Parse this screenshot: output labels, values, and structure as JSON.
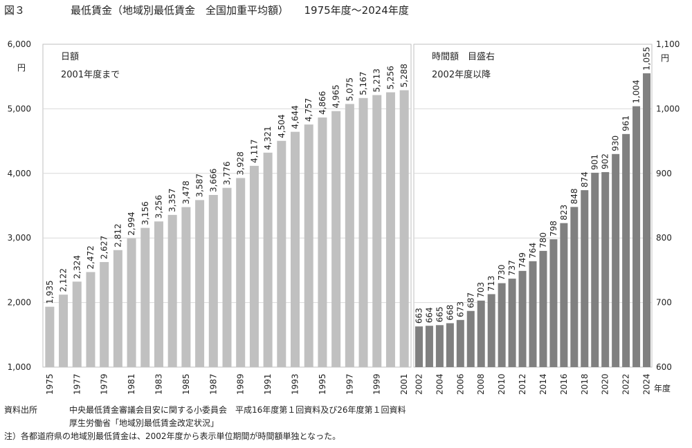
{
  "figure": {
    "number": "図３",
    "title": "最低賃金（地域別最低賃金　全国加重平均額）　　1975年度～2024年度"
  },
  "chart_data": [
    {
      "type": "bar",
      "panel_label": "日額",
      "panel_sublabel": "2001年度まで",
      "unit_label": "円",
      "ylim": [
        1000,
        6000
      ],
      "yticks": [
        "1,000",
        "2,000",
        "3,000",
        "4,000",
        "5,000",
        "6,000"
      ],
      "x_tick_labels": [
        "1975",
        "1977",
        "1979",
        "1981",
        "1983",
        "1985",
        "1987",
        "1989",
        "1991",
        "1993",
        "1995",
        "1997",
        "1999",
        "2001"
      ],
      "x": [
        1975,
        1976,
        1977,
        1978,
        1979,
        1980,
        1981,
        1982,
        1983,
        1984,
        1985,
        1986,
        1987,
        1988,
        1989,
        1990,
        1991,
        1992,
        1993,
        1994,
        1995,
        1996,
        1997,
        1998,
        1999,
        2000,
        2001
      ],
      "values": [
        1935,
        2122,
        2324,
        2472,
        2627,
        2812,
        2994,
        3156,
        3256,
        3357,
        3478,
        3587,
        3666,
        3776,
        3928,
        4117,
        4321,
        4504,
        4644,
        4757,
        4866,
        4965,
        5075,
        5167,
        5213,
        5256,
        5288
      ],
      "value_labels": [
        "1,935",
        "2,122",
        "2,324",
        "2,472",
        "2,627",
        "2,812",
        "2,994",
        "3,156",
        "3,256",
        "3,357",
        "3,478",
        "3,587",
        "3,666",
        "3,776",
        "3,928",
        "4,117",
        "4,321",
        "4,504",
        "4,644",
        "4,757",
        "4,866",
        "4,965",
        "5,075",
        "5,167",
        "5,213",
        "5,256",
        "5,288"
      ],
      "bar_color": "#c0c0c0",
      "grid": true
    },
    {
      "type": "bar",
      "panel_label": "時間額　目盛右",
      "panel_sublabel": "2002年度以降",
      "unit_label": "円",
      "ylim": [
        600,
        1100
      ],
      "yticks": [
        "600",
        "700",
        "800",
        "900",
        "1,000",
        "1,100"
      ],
      "x_tick_labels": [
        "2002",
        "2004",
        "2006",
        "2008",
        "2010",
        "2012",
        "2014",
        "2016",
        "2018",
        "2020",
        "2022",
        "2024"
      ],
      "x_axis_unit": "年度",
      "x": [
        2002,
        2003,
        2004,
        2005,
        2006,
        2007,
        2008,
        2009,
        2010,
        2011,
        2012,
        2013,
        2014,
        2015,
        2016,
        2017,
        2018,
        2019,
        2020,
        2021,
        2022,
        2023,
        2024
      ],
      "values": [
        663,
        664,
        665,
        668,
        673,
        687,
        703,
        713,
        730,
        737,
        749,
        764,
        780,
        798,
        823,
        848,
        874,
        901,
        902,
        930,
        961,
        1004,
        1055
      ],
      "value_labels": [
        "663",
        "664",
        "665",
        "668",
        "673",
        "687",
        "703",
        "713",
        "730",
        "737",
        "749",
        "764",
        "780",
        "798",
        "823",
        "848",
        "874",
        "901",
        "902",
        "930",
        "961",
        "1,004",
        "1,055"
      ],
      "bar_color": "#808080",
      "grid": true
    }
  ],
  "notes": {
    "source_label": "資料出所",
    "source_line1": "中央最低賃金審議会目安に関する小委員会　平成16年度第１回資料及び26年度第１回資料",
    "source_line2": "厚生労働省「地域別最低賃金改定状況」",
    "footnote": "注）各都道府県の地域別最低賃金は、2002年度から表示単位期間が時間額単独となった。"
  }
}
